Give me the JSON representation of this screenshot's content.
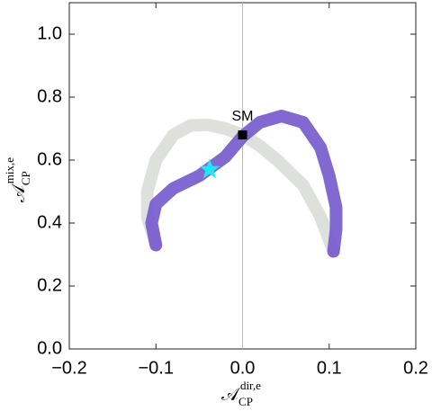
{
  "chart_data": {
    "type": "scatter",
    "xlabel": {
      "main": "𝒜",
      "sub": "CP",
      "sup": "dir,e"
    },
    "ylabel": {
      "main": "𝒜",
      "sub": "CP",
      "sup": "mix,e"
    },
    "xlim": [
      -0.2,
      0.2
    ],
    "ylim": [
      0,
      1.1
    ],
    "xticks": [
      {
        "value": -0.2,
        "label": "−0.2"
      },
      {
        "value": -0.1,
        "label": "−0.1"
      },
      {
        "value": 0,
        "label": "0.0"
      },
      0.1,
      0.2
    ],
    "yticks": [
      {
        "value": 0,
        "label": "0.0"
      },
      0.2,
      0.4,
      0.6,
      0.8,
      {
        "value": 1,
        "label": "1.0"
      }
    ],
    "vline": 0,
    "series": [
      {
        "color": "#d9ddd7",
        "x": [
          0.105,
          0.09,
          0.07,
          0.04,
          0.02,
          0,
          -0.02,
          -0.04,
          -0.06,
          -0.08,
          -0.1,
          -0.11,
          -0.11,
          -0.1
        ],
        "values": [
          0.31,
          0.42,
          0.52,
          0.6,
          0.645,
          0.68,
          0.7,
          0.712,
          0.71,
          0.68,
          0.6,
          0.5,
          0.42,
          0.33
        ]
      },
      {
        "color": "#7458cc",
        "x": [
          -0.1,
          -0.105,
          -0.1,
          -0.08,
          -0.05,
          -0.02,
          0,
          0.02,
          0.045,
          0.07,
          0.09,
          0.1,
          0.108,
          0.108,
          0.105
        ],
        "values": [
          0.33,
          0.4,
          0.46,
          0.51,
          0.55,
          0.61,
          0.675,
          0.72,
          0.74,
          0.72,
          0.64,
          0.55,
          0.45,
          0.38,
          0.31
        ]
      }
    ],
    "points": [
      {
        "name": "SM",
        "x": 0,
        "y": 0.68,
        "marker": "square",
        "color": "#000000"
      },
      {
        "x": -0.038,
        "y": 0.57,
        "marker": "star",
        "color": "#22e6f0"
      }
    ]
  }
}
